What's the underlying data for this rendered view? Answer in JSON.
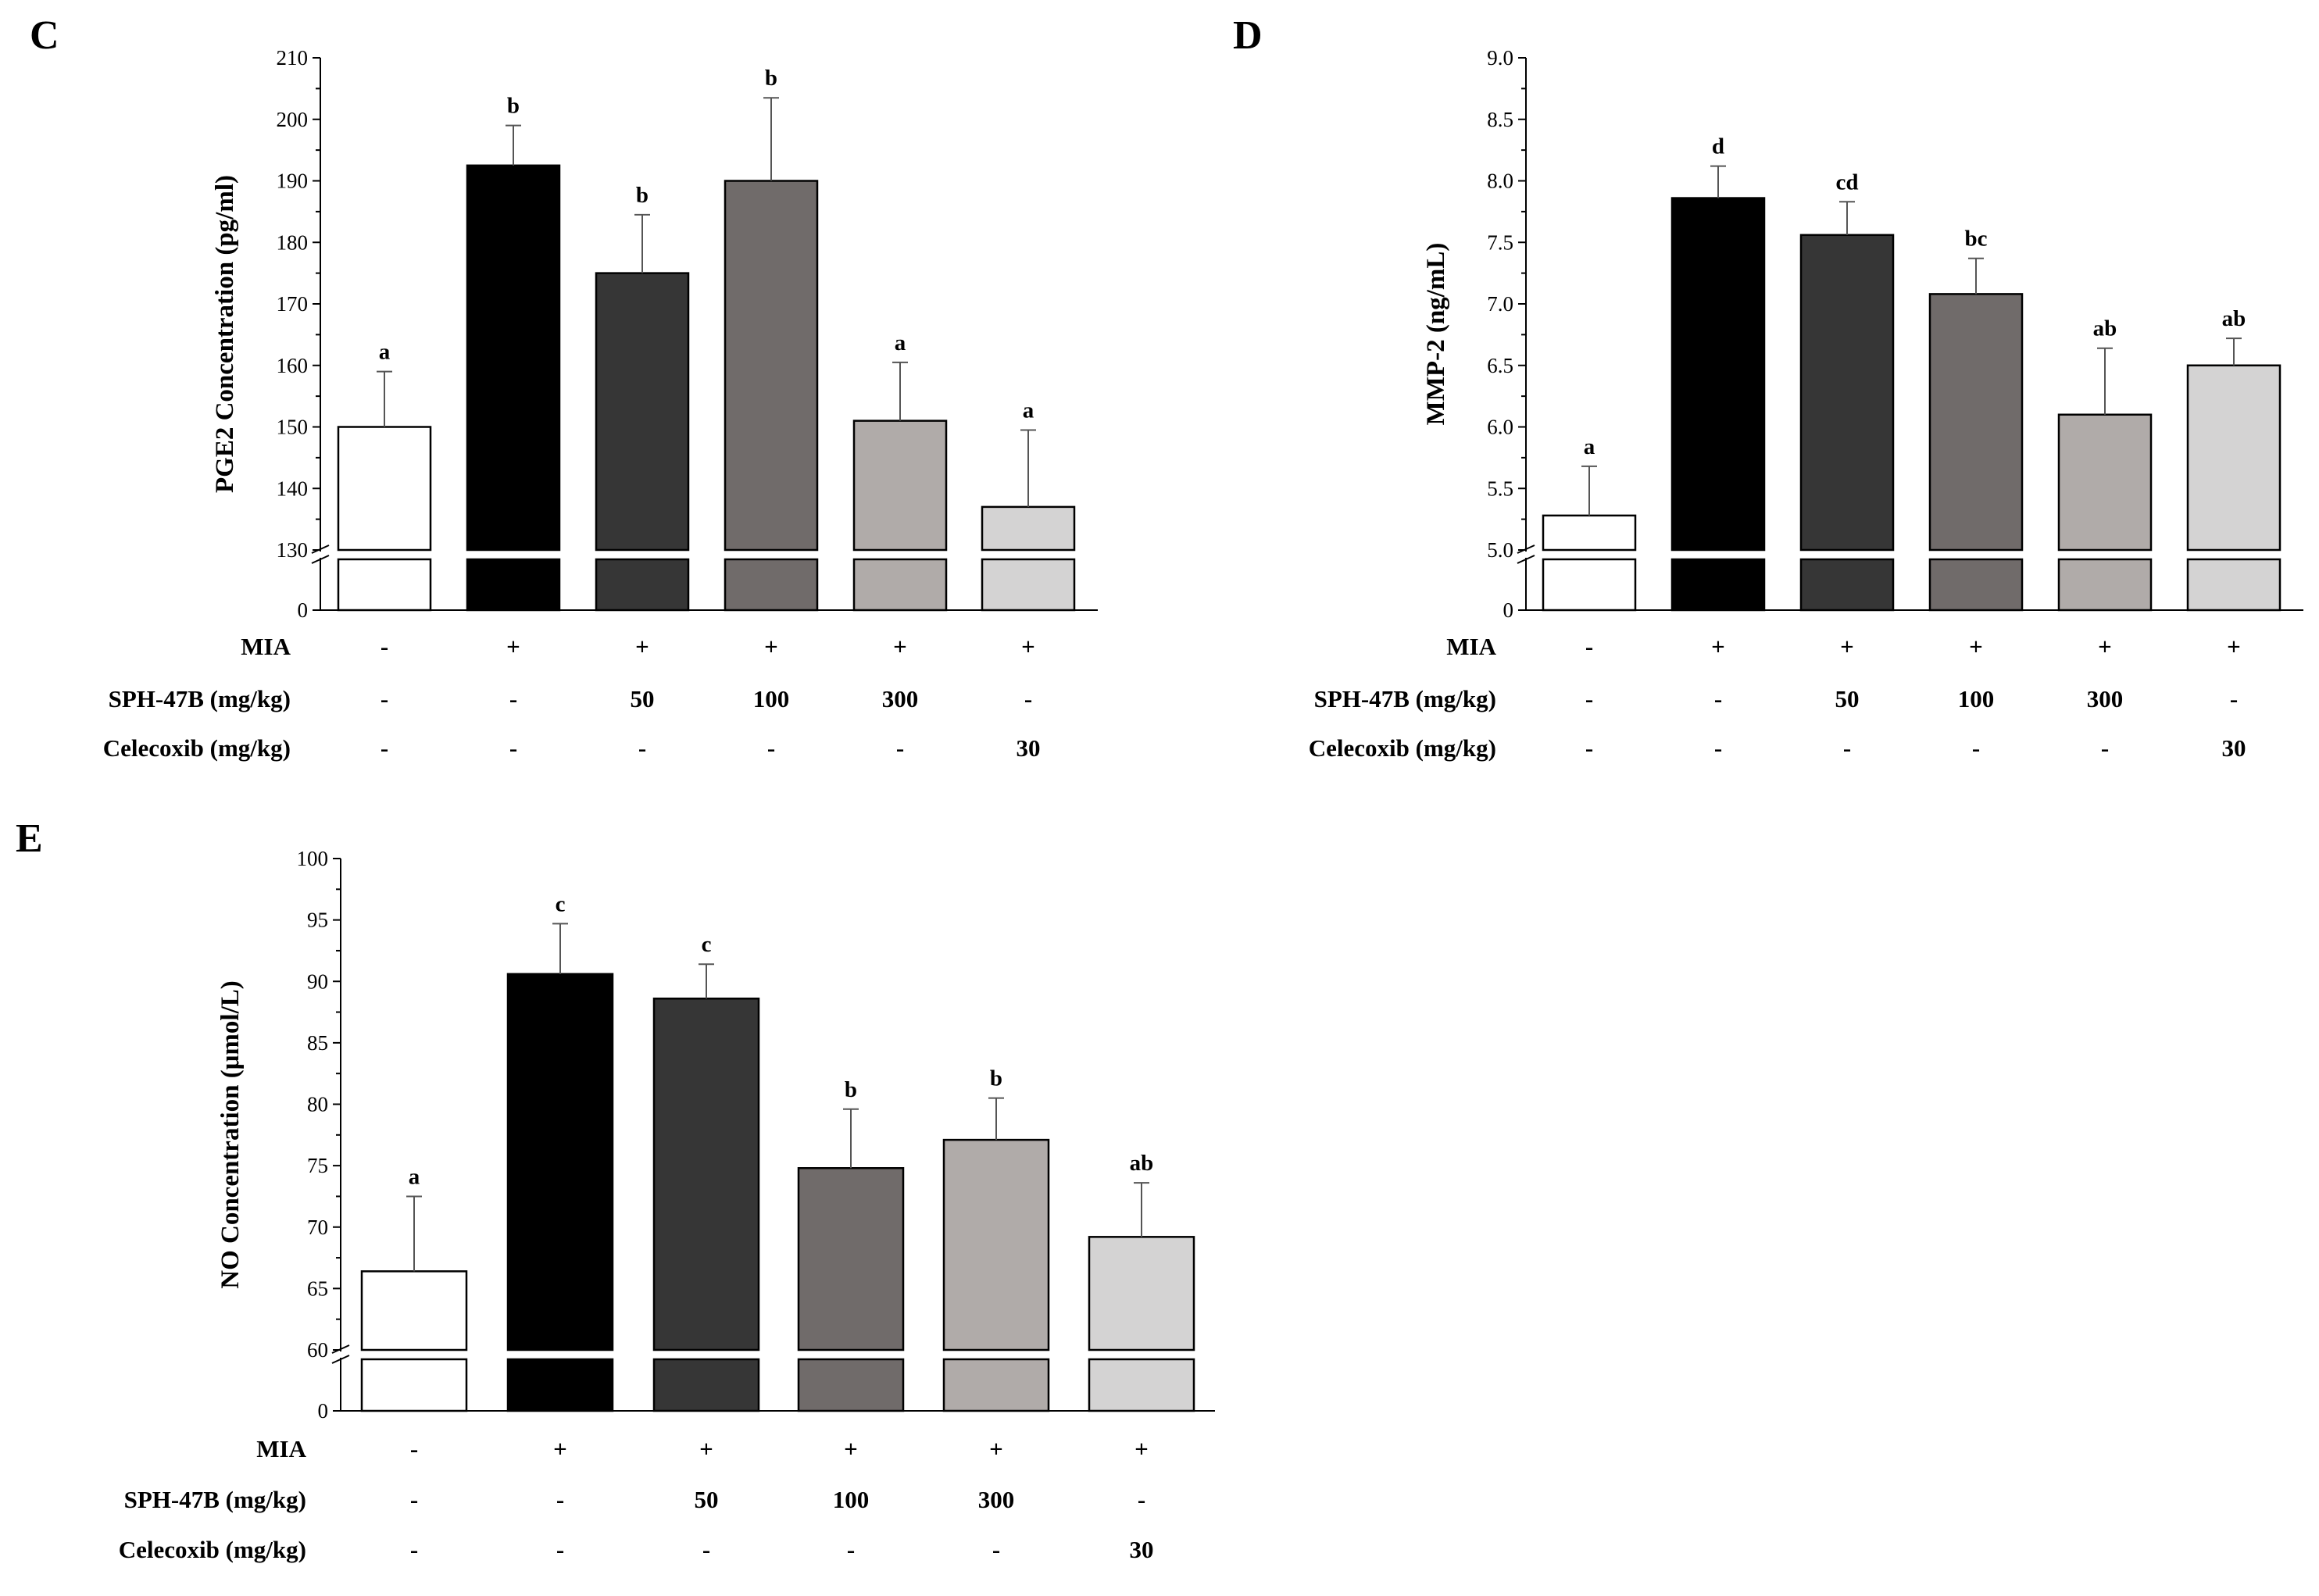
{
  "figure": {
    "treatments": {
      "rows": [
        {
          "label": "MIA",
          "values": [
            "-",
            "+",
            "+",
            "+",
            "+",
            "+"
          ]
        },
        {
          "label": "SPH-47B  (mg/kg)",
          "values": [
            "-",
            "-",
            "50",
            "100",
            "300",
            "-"
          ]
        },
        {
          "label": "Celecoxib  (mg/kg)",
          "values": [
            "-",
            "-",
            "-",
            "-",
            "-",
            "30"
          ]
        }
      ]
    },
    "bar_colors": [
      "#ffffff",
      "#000000",
      "#363636",
      "#706b6a",
      "#b0aba9",
      "#d4d3d3"
    ]
  },
  "chart_data": [
    {
      "panel": "C",
      "type": "bar",
      "ylabel": "PGE2 Concentration (pg/ml)",
      "y_axis_break": {
        "lower_tick": 0,
        "upper_range": [
          130,
          210
        ]
      },
      "ylim": [
        130,
        210
      ],
      "y_ticks": [
        0,
        130,
        140,
        150,
        160,
        170,
        180,
        190,
        200,
        210
      ],
      "values": [
        150,
        192.5,
        175,
        190,
        151,
        137
      ],
      "errors": [
        9,
        6.5,
        9.5,
        13.5,
        9.5,
        12.5
      ],
      "significance": [
        "a",
        "b",
        "b",
        "b",
        "a",
        "a"
      ]
    },
    {
      "panel": "D",
      "type": "bar",
      "ylabel": "MMP-2 (ng/mL)",
      "y_axis_break": {
        "lower_tick": 0,
        "upper_range": [
          5.0,
          9.0
        ]
      },
      "ylim": [
        5.0,
        9.0
      ],
      "y_ticks": [
        "0",
        "5.0",
        "5.5",
        "6.0",
        "6.5",
        "7.0",
        "7.5",
        "8.0",
        "8.5",
        "9.0"
      ],
      "values": [
        5.28,
        7.86,
        7.56,
        7.08,
        6.1,
        6.5
      ],
      "errors": [
        0.4,
        0.26,
        0.27,
        0.29,
        0.54,
        0.22
      ],
      "significance": [
        "a",
        "d",
        "cd",
        "bc",
        "ab",
        "ab"
      ]
    },
    {
      "panel": "E",
      "type": "bar",
      "ylabel": "NO Concentration (μmol/L)",
      "y_axis_break": {
        "lower_tick": 0,
        "upper_range": [
          60,
          100
        ]
      },
      "ylim": [
        60,
        100
      ],
      "y_ticks": [
        0,
        60,
        65,
        70,
        75,
        80,
        85,
        90,
        95,
        100
      ],
      "values": [
        66.4,
        90.6,
        88.6,
        74.8,
        77.1,
        69.2
      ],
      "errors": [
        6.1,
        4.1,
        2.8,
        4.8,
        3.4,
        4.4
      ],
      "significance": [
        "a",
        "c",
        "c",
        "b",
        "b",
        "ab"
      ]
    }
  ]
}
